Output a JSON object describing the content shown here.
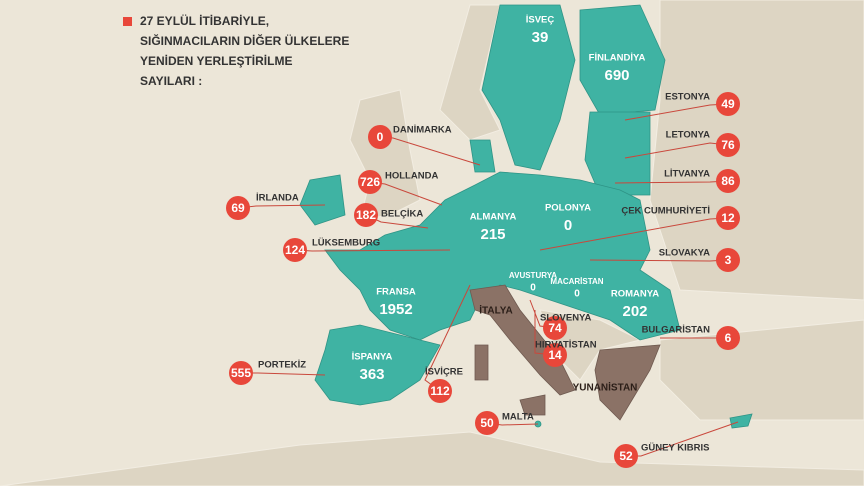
{
  "title": [
    "27 EYLÜL İTİBARİYLE,",
    "SIĞINMACILARIN DİĞER ÜLKELERE",
    "YENİDEN YERLEŞTİRİLME",
    "SAYILARI :"
  ],
  "circled": [
    {
      "name": "DANİMARKA",
      "value": 0
    },
    {
      "name": "HOLLANDA",
      "value": 726
    },
    {
      "name": "BELÇİKA",
      "value": 182
    },
    {
      "name": "İRLANDA",
      "value": 69
    },
    {
      "name": "LÜKSEMBURG",
      "value": 124
    },
    {
      "name": "PORTEKİZ",
      "value": 555
    },
    {
      "name": "İSVİÇRE",
      "value": 112
    },
    {
      "name": "MALTA",
      "value": 50
    },
    {
      "name": "GÜNEY KIBRIS",
      "value": 52
    },
    {
      "name": "ESTONYA",
      "value": 49
    },
    {
      "name": "LETONYA",
      "value": 76
    },
    {
      "name": "LİTVANYA",
      "value": 86
    },
    {
      "name": "ÇEK CUMHURİYETİ",
      "value": 12
    },
    {
      "name": "SLOVAKYA",
      "value": 3
    },
    {
      "name": "BULGARİSTAN",
      "value": 6
    },
    {
      "name": "SLOVENYA",
      "value": 74
    },
    {
      "name": "HIRVATİSTAN",
      "value": 14
    }
  ],
  "on_map": [
    {
      "name": "İSVEÇ",
      "value": 39
    },
    {
      "name": "FİNLANDİYA",
      "value": 690
    },
    {
      "name": "ALMANYA",
      "value": 215
    },
    {
      "name": "POLONYA",
      "value": 0
    },
    {
      "name": "FRANSA",
      "value": 1952
    },
    {
      "name": "İSPANYA",
      "value": 363
    },
    {
      "name": "AVUSTURYA",
      "value": 0
    },
    {
      "name": "MACARİSTAN",
      "value": 0
    },
    {
      "name": "ROMANYA",
      "value": 202
    }
  ],
  "other_labels": [
    "İTALYA",
    "YUNANİSTAN"
  ]
}
